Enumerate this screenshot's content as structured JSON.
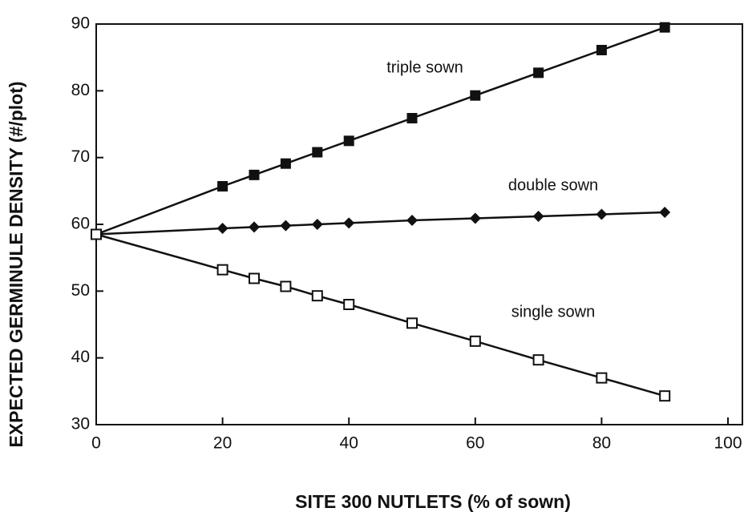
{
  "chart_data": {
    "type": "line",
    "xlabel": "SITE 300 NUTLETS (% of sown)",
    "ylabel": "EXPECTED GERMINULE DENSITY (#/plot)",
    "x": [
      0,
      20,
      25,
      30,
      35,
      40,
      50,
      60,
      70,
      80,
      90
    ],
    "series": [
      {
        "name": "triple sown",
        "color": "#111111",
        "marker": "square",
        "values": [
          58.5,
          65.7,
          67.4,
          69.1,
          70.8,
          72.5,
          75.9,
          79.3,
          82.7,
          86.1,
          89.5
        ]
      },
      {
        "name": "double sown",
        "color": "#111111",
        "marker": "diamond",
        "values": [
          58.5,
          59.4,
          59.6,
          59.8,
          60.0,
          60.2,
          60.6,
          60.9,
          61.2,
          61.5,
          61.8
        ]
      },
      {
        "name": "single sown",
        "color": "#111111",
        "marker": "open-square",
        "values": [
          58.5,
          53.2,
          51.9,
          50.7,
          49.3,
          48.0,
          45.2,
          42.5,
          39.7,
          37.0,
          34.3
        ]
      }
    ],
    "xlim": [
      0,
      100
    ],
    "xticks": [
      0,
      20,
      40,
      60,
      80,
      100
    ],
    "ylim": [
      30,
      90
    ],
    "yticks": [
      30,
      40,
      50,
      60,
      70,
      80,
      90
    ],
    "grid": false
  }
}
